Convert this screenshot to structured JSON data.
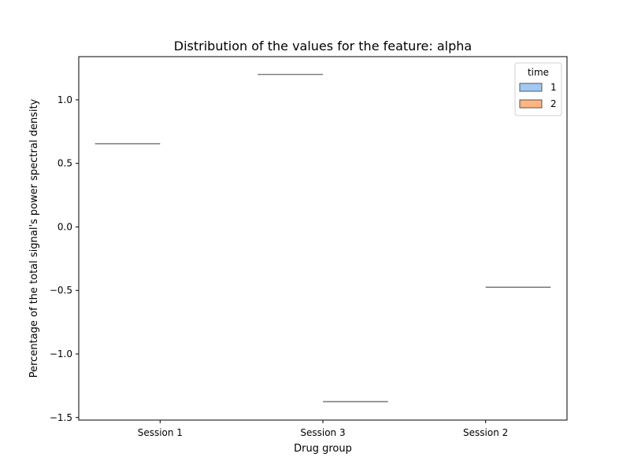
{
  "chart_data": {
    "type": "box",
    "title": "Distribution of the values for the feature: alpha",
    "xlabel": "Drug group",
    "ylabel": "Percentage of the total signal's power spectral density",
    "categories": [
      "Session 1",
      "Session 3",
      "Session 2"
    ],
    "ylim": [
      -1.52,
      1.34
    ],
    "yticks": [
      -1.5,
      -1.0,
      -0.5,
      0.0,
      0.5,
      1.0
    ],
    "ytick_labels": [
      "−1.5",
      "−1.0",
      "−0.5",
      "0.0",
      "0.5",
      "1.0"
    ],
    "grid": false,
    "legend": {
      "title": "time",
      "placement": "top-right",
      "entries": [
        {
          "label": "1",
          "color": "#a1c9f4"
        },
        {
          "label": "2",
          "color": "#ffb482"
        }
      ]
    },
    "series": [
      {
        "name": "1",
        "color": "#a1c9f4",
        "values": [
          0.655,
          1.2,
          null
        ]
      },
      {
        "name": "2",
        "color": "#ffb482",
        "values": [
          null,
          -1.375,
          -0.475
        ]
      }
    ],
    "median_color": "#808080"
  }
}
